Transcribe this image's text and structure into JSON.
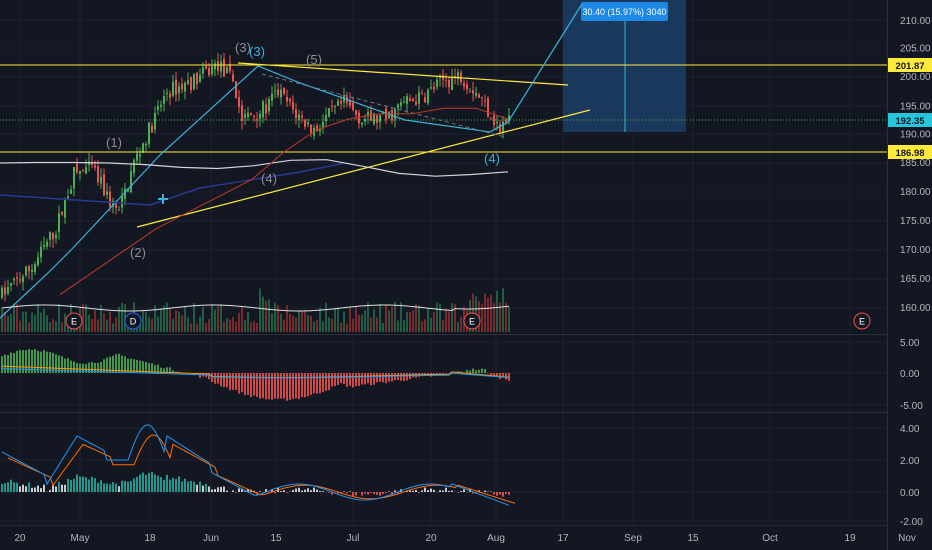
{
  "colors": {
    "background": "#131722",
    "grid": "#1e222d",
    "text": "#b2b5be",
    "up": "#26a69a",
    "down": "#ef5350",
    "up_bright": "#4caf50",
    "yellow": "#ffeb3b",
    "cyan": "#3ab3d8",
    "white_ma": "#d1d4dc",
    "red_ma": "#c0392b",
    "last_price": "#26c6da",
    "projection_fill": "#1c3b63"
  },
  "axes": {
    "price_ticks": [
      "210.00",
      "205.00",
      "200.00",
      "195.00",
      "190.00",
      "185.00",
      "180.00",
      "175.00",
      "170.00",
      "165.00",
      "160.00"
    ],
    "macd_ticks": [
      "5.00",
      "0.00",
      "-5.00"
    ],
    "osc_ticks": [
      "4.00",
      "2.00",
      "0.00",
      "-2.00"
    ],
    "time_ticks": [
      "20",
      "May",
      "18",
      "Jun",
      "15",
      "Jul",
      "20",
      "Aug",
      "17",
      "Sep",
      "15",
      "Oct",
      "19",
      "Nov"
    ]
  },
  "price_labels": {
    "resistance": "201.87",
    "last": "192.35",
    "support": "186.98"
  },
  "projection": {
    "label": "30.40 (15.97%) 3040"
  },
  "waves": [
    {
      "text": "(1)",
      "color": "gray"
    },
    {
      "text": "(2)",
      "color": "gray"
    },
    {
      "text": "(3)",
      "color": "gray"
    },
    {
      "text": "(3)",
      "color": "cyan"
    },
    {
      "text": "(4)",
      "color": "gray"
    },
    {
      "text": "(5)",
      "color": "gray"
    },
    {
      "text": "(4)",
      "color": "cyan"
    }
  ],
  "event_markers": [
    {
      "text": "E"
    },
    {
      "text": "D"
    },
    {
      "text": "E"
    },
    {
      "text": "E"
    }
  ],
  "chart_data": {
    "type": "candlestick",
    "price_range": [
      155,
      213
    ],
    "moving_averages": [
      {
        "name": "",
        "color": "#d1d4dc",
        "values": [
          184,
          184.1,
          184.1,
          184.0,
          183.7,
          183.2,
          183.0,
          183.5,
          184.5,
          184.6,
          183.4,
          182.1,
          181.6,
          181.9,
          182.4
        ]
      },
      {
        "name": "",
        "color": "#c0392b",
        "values": [
          160,
          164,
          168,
          172,
          175,
          178,
          181,
          186,
          190,
          192,
          193,
          193,
          194,
          194,
          192
        ]
      }
    ],
    "key_levels": {
      "resistance": 201.87,
      "last_price": 192.35,
      "support": 186.98
    },
    "projection": {
      "change": 30.4,
      "percent": 15.97
    },
    "macd_range": [
      -6,
      6
    ],
    "oscillator_range": [
      -2.2,
      5
    ]
  }
}
